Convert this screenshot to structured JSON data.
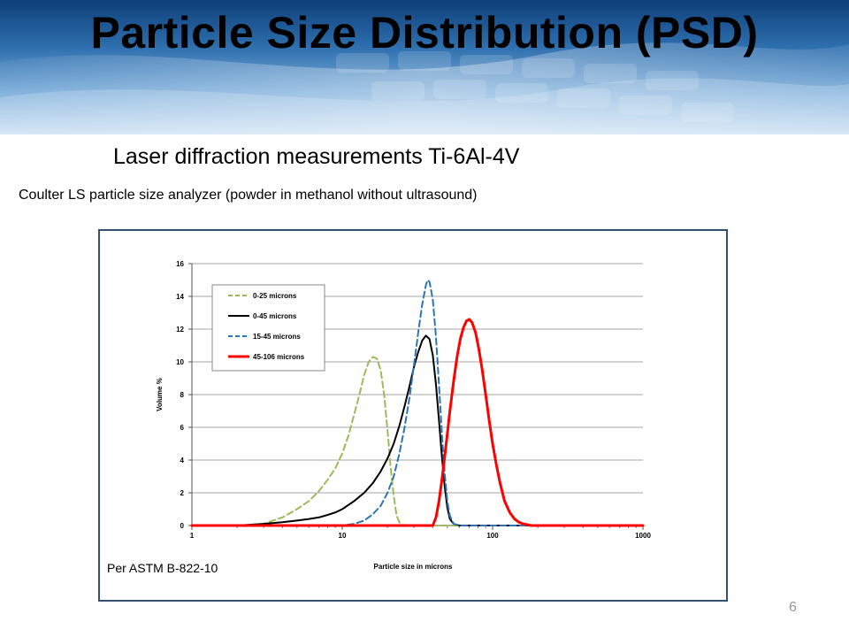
{
  "slide": {
    "title": "Particle Size Distribution (PSD)",
    "subtitle": "Laser diffraction measurements Ti-6Al-4V",
    "caption": "Coulter LS particle size analyzer (powder in methanol without ultrasound)",
    "footnote": "Per ASTM B-822-10",
    "page_number": "6"
  },
  "chart_data": {
    "type": "line",
    "title": "",
    "xlabel": "Particle size in microns",
    "ylabel": "Volume %",
    "x_scale": "log",
    "xlim": [
      1,
      1000
    ],
    "ylim": [
      0,
      16
    ],
    "x_ticks": [
      "1",
      "10",
      "100",
      "1000"
    ],
    "y_ticks": [
      "0",
      "2",
      "4",
      "6",
      "8",
      "10",
      "12",
      "14",
      "16"
    ],
    "grid": "horizontal",
    "legend_position": "top-left",
    "series": [
      {
        "name": "0-25 microns",
        "color": "#9bbb59",
        "style": "dashed",
        "x": [
          1,
          2,
          3,
          4,
          5,
          6,
          7,
          8,
          9,
          10,
          11,
          12,
          13,
          14,
          15,
          16,
          17,
          18,
          19,
          20,
          21,
          22,
          23,
          24,
          25,
          27,
          30,
          1000
        ],
        "y": [
          0,
          0,
          0.1,
          0.5,
          1.0,
          1.5,
          2.1,
          2.8,
          3.5,
          4.4,
          5.5,
          6.8,
          8.0,
          9.2,
          10.0,
          10.3,
          10.2,
          9.5,
          8.0,
          5.8,
          3.5,
          1.8,
          0.6,
          0.2,
          0.05,
          0,
          0,
          0
        ]
      },
      {
        "name": "0-45 microns",
        "color": "#000000",
        "style": "solid",
        "x": [
          1,
          2,
          3,
          4,
          5,
          6,
          7,
          8,
          9,
          10,
          12,
          14,
          16,
          18,
          20,
          22,
          24,
          26,
          28,
          30,
          32,
          34,
          36,
          38,
          40,
          42,
          44,
          46,
          48,
          50,
          52,
          55,
          60,
          1000
        ],
        "y": [
          0,
          0,
          0.1,
          0.2,
          0.3,
          0.4,
          0.5,
          0.65,
          0.8,
          1.0,
          1.5,
          2.0,
          2.6,
          3.3,
          4.1,
          5.0,
          6.1,
          7.3,
          8.5,
          9.7,
          10.6,
          11.3,
          11.6,
          11.4,
          10.4,
          8.6,
          6.4,
          4.2,
          2.4,
          1.1,
          0.4,
          0.1,
          0,
          0
        ]
      },
      {
        "name": "15-45 microns",
        "color": "#2e75b6",
        "style": "dashed",
        "x": [
          1,
          5,
          10,
          12,
          14,
          16,
          18,
          20,
          22,
          24,
          26,
          28,
          30,
          32,
          34,
          36,
          37,
          38,
          40,
          42,
          44,
          46,
          48,
          50,
          52,
          55,
          60,
          1000
        ],
        "y": [
          0,
          0,
          0,
          0.1,
          0.3,
          0.7,
          1.2,
          2.0,
          3.0,
          4.4,
          6.0,
          7.8,
          9.8,
          11.8,
          13.5,
          14.7,
          15.0,
          14.9,
          13.8,
          11.5,
          8.6,
          5.6,
          3.2,
          1.5,
          0.6,
          0.1,
          0,
          0
        ]
      },
      {
        "name": "45-106 microns",
        "color": "#ff0000",
        "style": "solid",
        "x": [
          1,
          10,
          35,
          40,
          42,
          44,
          46,
          48,
          50,
          52,
          55,
          58,
          61,
          64,
          67,
          70,
          73,
          77,
          81,
          85,
          90,
          95,
          100,
          106,
          112,
          120,
          130,
          140,
          150,
          160,
          180,
          200,
          1000
        ],
        "y": [
          0,
          0,
          0,
          0,
          0.5,
          1.5,
          2.8,
          4.2,
          5.6,
          7.0,
          8.8,
          10.3,
          11.4,
          12.1,
          12.5,
          12.6,
          12.4,
          11.8,
          10.8,
          9.6,
          8.0,
          6.4,
          5.0,
          3.7,
          2.6,
          1.5,
          0.8,
          0.4,
          0.2,
          0.1,
          0,
          0,
          0
        ]
      }
    ]
  }
}
